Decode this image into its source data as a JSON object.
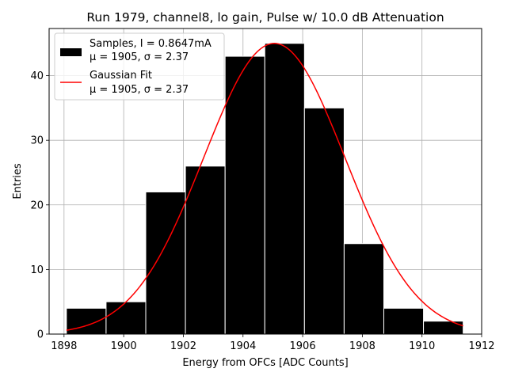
{
  "chart_data": {
    "type": "bar",
    "title": "Run 1979, channel8, lo gain, Pulse w/ 10.0 dB Attenuation",
    "xlabel": "Energy from OFCs [ADC Counts]",
    "ylabel": "Entries",
    "xlim": [
      1897.5,
      1912.0
    ],
    "ylim": [
      0,
      47.3
    ],
    "xticks": [
      1898,
      1900,
      1902,
      1904,
      1906,
      1908,
      1910,
      1912
    ],
    "yticks": [
      0,
      10,
      20,
      30,
      40
    ],
    "grid": true,
    "bin_edges": [
      1898.08,
      1899.41,
      1900.74,
      1902.07,
      1903.4,
      1904.73,
      1906.06,
      1907.39,
      1908.72,
      1910.05,
      1911.38
    ],
    "values": [
      4,
      5,
      22,
      26,
      43,
      45,
      35,
      14,
      4,
      2
    ],
    "bar_color": "#000000",
    "fit": {
      "mean": 1905.05,
      "sigma": 2.37,
      "amplitude": 45.0,
      "x_range": [
        1898.08,
        1911.38
      ],
      "color": "#ff0000"
    },
    "legend": {
      "location": "upper left",
      "entries": [
        {
          "line1": "Samples, I = 0.8647mA",
          "line2": "μ = 1905, σ = 2.37"
        },
        {
          "line1": "Gaussian Fit",
          "line2": "μ = 1905, σ = 2.37"
        }
      ]
    }
  }
}
